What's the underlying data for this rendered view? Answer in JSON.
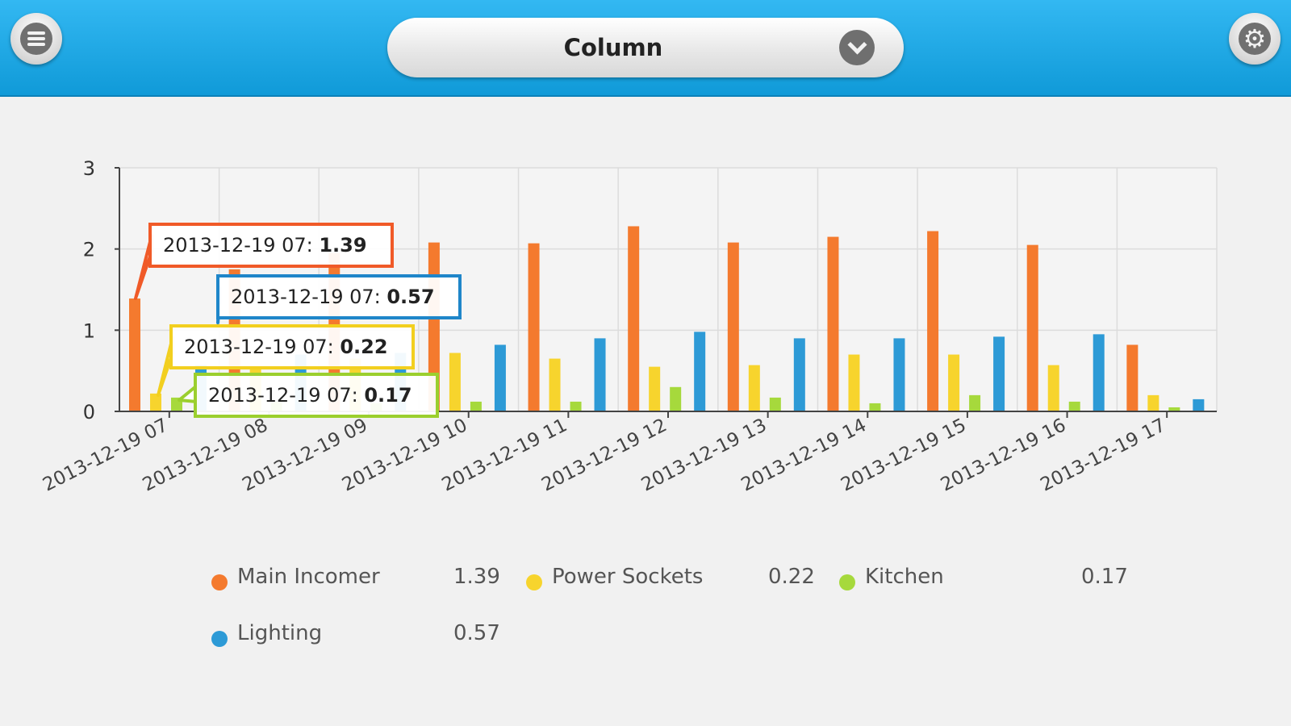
{
  "header": {
    "chart_type_label": "Column",
    "menu_icon": "menu-icon",
    "settings_icon": "gear-icon",
    "dropdown_icon": "chevron-down-icon"
  },
  "chart_data": {
    "type": "bar",
    "categories": [
      "2013-12-19 07",
      "2013-12-19 08",
      "2013-12-19 09",
      "2013-12-19 10",
      "2013-12-19 11",
      "2013-12-19 12",
      "2013-12-19 13",
      "2013-12-19 14",
      "2013-12-19 15",
      "2013-12-19 16",
      "2013-12-19 17"
    ],
    "series": [
      {
        "name": "Main Incomer",
        "color": "#f47a2e",
        "values": [
          1.39,
          1.75,
          1.95,
          2.08,
          2.07,
          2.28,
          2.08,
          2.15,
          2.22,
          2.05,
          0.82
        ]
      },
      {
        "name": "Power Sockets",
        "color": "#f7d42d",
        "values": [
          0.22,
          0.55,
          0.65,
          0.72,
          0.65,
          0.55,
          0.57,
          0.7,
          0.7,
          0.57,
          0.2
        ]
      },
      {
        "name": "Kitchen",
        "color": "#a6d93c",
        "values": [
          0.17,
          0.12,
          0.1,
          0.12,
          0.12,
          0.3,
          0.17,
          0.1,
          0.2,
          0.12,
          0.05
        ]
      },
      {
        "name": "Lighting",
        "color": "#2d9ad6",
        "values": [
          0.57,
          0.7,
          0.72,
          0.82,
          0.9,
          0.98,
          0.9,
          0.9,
          0.92,
          0.95,
          0.15
        ]
      }
    ],
    "ylim": [
      0,
      3
    ],
    "yticks": [
      "0",
      "1",
      "2",
      "3"
    ],
    "grid": true,
    "tooltips": [
      {
        "series": "Main Incomer",
        "label": "2013-12-19 07: ",
        "value": "1.39",
        "color": "#f05a28"
      },
      {
        "series": "Lighting",
        "label": "2013-12-19 07: ",
        "value": "0.57",
        "color": "#1f86c9"
      },
      {
        "series": "Power Sockets",
        "label": "2013-12-19 07: ",
        "value": "0.22",
        "color": "#f2cf1f"
      },
      {
        "series": "Kitchen",
        "label": "2013-12-19 07: ",
        "value": "0.17",
        "color": "#9bcf2e"
      }
    ]
  },
  "legend": [
    {
      "name": "Main Incomer",
      "value": "1.39",
      "color": "#f47a2e"
    },
    {
      "name": "Power Sockets",
      "value": "0.22",
      "color": "#f7d42d"
    },
    {
      "name": "Kitchen",
      "value": "0.17",
      "color": "#a6d93c"
    },
    {
      "name": "Lighting",
      "value": "0.57",
      "color": "#2d9ad6"
    }
  ]
}
